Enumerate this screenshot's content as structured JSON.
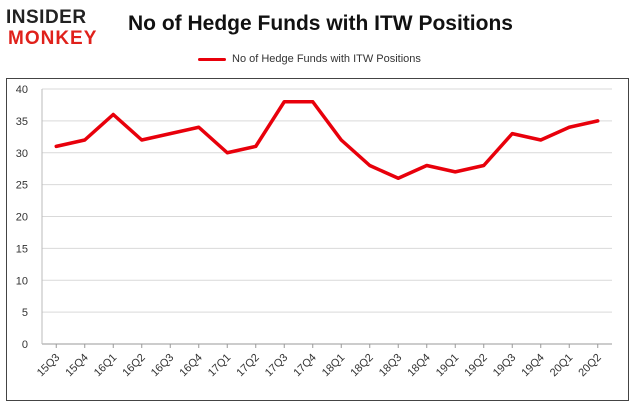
{
  "brand": {
    "line1": "INSIDER",
    "line2": "MONKEY"
  },
  "chart_data": {
    "type": "line",
    "title": "No of Hedge Funds with ITW Positions",
    "categories": [
      "15Q3",
      "15Q4",
      "16Q1",
      "16Q2",
      "16Q3",
      "16Q4",
      "17Q1",
      "17Q2",
      "17Q3",
      "17Q4",
      "18Q1",
      "18Q2",
      "18Q3",
      "18Q4",
      "19Q1",
      "19Q2",
      "19Q3",
      "19Q4",
      "20Q1",
      "20Q2"
    ],
    "series": [
      {
        "name": "No of Hedge Funds with ITW Positions",
        "values": [
          31,
          32,
          36,
          32,
          33,
          34,
          30,
          31,
          38,
          38,
          32,
          28,
          26,
          28,
          27,
          28,
          33,
          32,
          34,
          35
        ],
        "color": "#e8000b"
      }
    ],
    "ylim": [
      0,
      40
    ],
    "yticks": [
      0,
      5,
      10,
      15,
      20,
      25,
      30,
      35,
      40
    ],
    "grid": true,
    "legend_position": "top-center"
  }
}
